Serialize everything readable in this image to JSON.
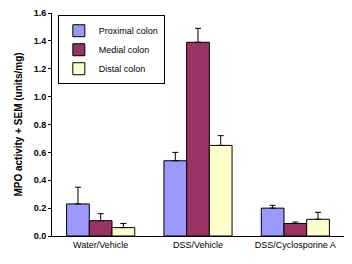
{
  "chart_data": {
    "type": "bar",
    "y_label": "MPO activity + SEM (units/mg)",
    "categories": [
      "Water/Vehicle",
      "DSS/Vehicle",
      "DSS/Cyclosporine A"
    ],
    "series": [
      {
        "name": "Proximal colon",
        "color": "#9999ff",
        "values": [
          0.23,
          0.54,
          0.2
        ],
        "errors": [
          0.12,
          0.06,
          0.02
        ]
      },
      {
        "name": "Medial colon",
        "color": "#993366",
        "values": [
          0.11,
          1.39,
          0.09
        ],
        "errors": [
          0.05,
          0.1,
          0.01
        ]
      },
      {
        "name": "Distal colon",
        "color": "#ffffcc",
        "values": [
          0.06,
          0.65,
          0.12
        ],
        "errors": [
          0.03,
          0.07,
          0.05
        ]
      }
    ],
    "ylim": [
      0,
      1.6
    ],
    "yticks": [
      {
        "value": 0,
        "label": "0.0"
      },
      0.2,
      0.4,
      0.6,
      0.8,
      {
        "value": 1,
        "label": "1.0"
      },
      1.2,
      1.4,
      1.6
    ],
    "grid": false,
    "legend": "top-left"
  }
}
